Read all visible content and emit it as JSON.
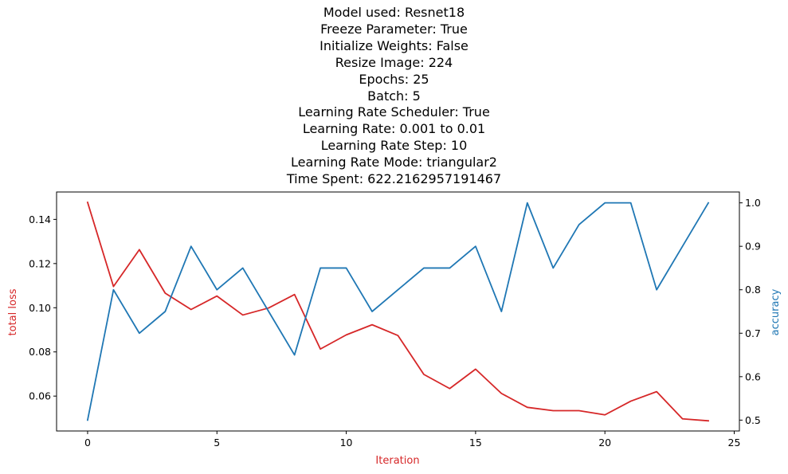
{
  "chart_data": {
    "type": "line",
    "title_lines": [
      "Model used: Resnet18",
      "Freeze Parameter: True",
      "Initialize Weights: False",
      "Resize Image: 224",
      "Epochs: 25",
      "Batch: 5",
      "Learning Rate Scheduler: True",
      "Learning Rate: 0.001 to 0.01",
      "Learning Rate Step: 10",
      "Learning Rate Mode: triangular2",
      "Time Spent: 622.2162957191467"
    ],
    "xlabel": "Iteration",
    "ylabel_left": "total loss",
    "ylabel_right": "accuracy",
    "xlim": [
      -1.2,
      25.2
    ],
    "ylim_left": [
      0.0442,
      0.1524
    ],
    "ylim_right": [
      0.475,
      1.025
    ],
    "x_ticks": [
      0,
      5,
      10,
      15,
      20,
      25
    ],
    "y_left_ticks": [
      "0.06",
      "0.08",
      "0.10",
      "0.12",
      "0.14"
    ],
    "y_left_tick_values": [
      0.06,
      0.08,
      0.1,
      0.12,
      0.14
    ],
    "y_right_ticks": [
      "0.5",
      "0.6",
      "0.7",
      "0.8",
      "0.9",
      "1.0"
    ],
    "y_right_tick_values": [
      0.5,
      0.6,
      0.7,
      0.8,
      0.9,
      1.0
    ],
    "x": [
      0,
      1,
      2,
      3,
      4,
      5,
      6,
      7,
      8,
      9,
      10,
      11,
      12,
      13,
      14,
      15,
      16,
      17,
      18,
      19,
      20,
      21,
      22,
      23,
      24
    ],
    "series": [
      {
        "name": "total loss",
        "axis": "left",
        "color": "#d62728",
        "values": [
          0.1477,
          0.1096,
          0.1263,
          0.1066,
          0.0992,
          0.1053,
          0.0967,
          0.0999,
          0.106,
          0.0813,
          0.0877,
          0.0923,
          0.0874,
          0.0698,
          0.0634,
          0.0722,
          0.0612,
          0.0549,
          0.0534,
          0.0534,
          0.0515,
          0.0577,
          0.062,
          0.0497,
          0.0488
        ]
      },
      {
        "name": "accuracy",
        "axis": "right",
        "color": "#1f77b4",
        "values": [
          0.5,
          0.8,
          0.7,
          0.75,
          0.9,
          0.8,
          0.85,
          0.75,
          0.65,
          0.85,
          0.85,
          0.75,
          0.8,
          0.85,
          0.85,
          0.9,
          0.75,
          1.0,
          0.85,
          0.95,
          1.0,
          1.0,
          0.8,
          0.9,
          1.0
        ]
      }
    ],
    "grid": false
  }
}
